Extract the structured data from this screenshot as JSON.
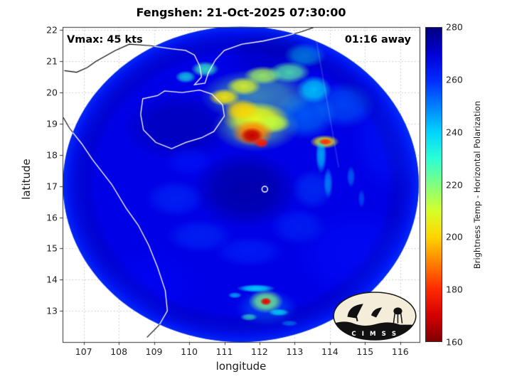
{
  "title": "Fengshen: 21-Oct-2025 07:30:00",
  "annotations": {
    "vmax": "Vmax: 45 kts",
    "time_away": "01:16 away"
  },
  "axes": {
    "xlabel": "longitude",
    "ylabel": "latitude",
    "xlim": [
      106.4,
      116.55
    ],
    "ylim": [
      12.0,
      22.1
    ],
    "xticks": [
      107,
      108,
      109,
      110,
      111,
      112,
      113,
      114,
      115,
      116
    ],
    "yticks": [
      13,
      14,
      15,
      16,
      17,
      18,
      19,
      20,
      21,
      22
    ],
    "grid": "dotted"
  },
  "colorbar": {
    "label": "Brightness Temp - Horizontal Polarization",
    "min": 160,
    "max": 280,
    "ticks": [
      160,
      180,
      200,
      220,
      240,
      260,
      280
    ],
    "colormap": "jet-reversed"
  },
  "logo": {
    "text": "C I M S S"
  },
  "chart_data": {
    "type": "heatmap",
    "title": "Fengshen: 21-Oct-2025 07:30:00",
    "storm": {
      "name": "Fengshen",
      "vmax_kts": 45,
      "time_to_obs": "01:16 away",
      "obs_time": "21-Oct-2025 07:30:00"
    },
    "units": "Brightness Temp (K), Horizontal Polarization",
    "swath": {
      "center_lon": 111.47,
      "center_lat": 17.06,
      "radius_deg": 5.06,
      "base_temp": 268
    },
    "center_marker": {
      "lon": 112.15,
      "lat": 16.9
    },
    "seam": [
      [
        113.55,
        22.1
      ],
      [
        114.25,
        17.6
      ]
    ],
    "features": [
      {
        "t": 277,
        "lon": 111.6,
        "lat": 16.9,
        "rx": 1.5,
        "ry": 1.25,
        "a": 0.75
      },
      {
        "t": 276,
        "lon": 109.7,
        "lat": 18.9,
        "rx": 1.6,
        "ry": 1.1,
        "a": 0.6
      },
      {
        "t": 274,
        "lon": 112.4,
        "lat": 21.2,
        "rx": 1.4,
        "ry": 0.95,
        "a": 0.5
      },
      {
        "t": 263,
        "lon": 114.8,
        "lat": 14.8,
        "rx": 1.8,
        "ry": 1.5,
        "a": 0.5
      },
      {
        "t": 262,
        "lon": 115.7,
        "lat": 18.5,
        "rx": 1.1,
        "ry": 1.7,
        "a": 0.5
      },
      {
        "t": 264,
        "lon": 108.9,
        "lat": 13.9,
        "rx": 1.5,
        "ry": 1.1,
        "a": 0.4
      },
      {
        "t": 258,
        "lon": 109.6,
        "lat": 16.6,
        "rx": 0.85,
        "ry": 0.6,
        "a": 0.5
      },
      {
        "t": 258,
        "lon": 110.3,
        "lat": 15.4,
        "rx": 0.95,
        "ry": 0.55,
        "a": 0.5
      },
      {
        "t": 259,
        "lon": 111.7,
        "lat": 14.9,
        "rx": 1.0,
        "ry": 0.5,
        "a": 0.5
      },
      {
        "t": 258,
        "lon": 113.1,
        "lat": 15.7,
        "rx": 0.8,
        "ry": 0.6,
        "a": 0.45
      },
      {
        "t": 255,
        "lon": 113.5,
        "lat": 16.9,
        "rx": 0.6,
        "ry": 0.65,
        "a": 0.45
      },
      {
        "t": 262,
        "lon": 110.0,
        "lat": 17.8,
        "rx": 0.7,
        "ry": 0.5,
        "a": 0.5
      },
      {
        "t": 250,
        "lon": 114.4,
        "lat": 19.6,
        "rx": 0.9,
        "ry": 0.75,
        "a": 0.5
      },
      {
        "t": 247,
        "lon": 113.3,
        "lat": 19.3,
        "rx": 0.9,
        "ry": 0.8,
        "a": 0.55
      },
      {
        "t": 222,
        "lon": 111.9,
        "lat": 19.9,
        "rx": 1.6,
        "ry": 0.85,
        "a": 0.5
      },
      {
        "t": 220,
        "lon": 111.9,
        "lat": 18.9,
        "rx": 1.25,
        "ry": 0.8,
        "a": 0.5
      },
      {
        "t": 203,
        "lon": 111.0,
        "lat": 19.85,
        "rx": 0.45,
        "ry": 0.28,
        "a": 0.9
      },
      {
        "t": 208,
        "lon": 111.55,
        "lat": 20.2,
        "rx": 0.5,
        "ry": 0.3,
        "a": 0.85
      },
      {
        "t": 215,
        "lon": 112.1,
        "lat": 20.55,
        "rx": 0.55,
        "ry": 0.3,
        "a": 0.85
      },
      {
        "t": 224,
        "lon": 112.85,
        "lat": 20.65,
        "rx": 0.6,
        "ry": 0.35,
        "a": 0.8
      },
      {
        "t": 236,
        "lon": 113.55,
        "lat": 20.1,
        "rx": 0.5,
        "ry": 0.45,
        "a": 0.75
      },
      {
        "t": 228,
        "lon": 110.45,
        "lat": 20.75,
        "rx": 0.4,
        "ry": 0.25,
        "a": 0.8
      },
      {
        "t": 232,
        "lon": 109.9,
        "lat": 20.5,
        "rx": 0.3,
        "ry": 0.2,
        "a": 0.7
      },
      {
        "t": 240,
        "lon": 113.3,
        "lat": 21.2,
        "rx": 0.6,
        "ry": 0.4,
        "a": 0.6
      },
      {
        "t": 207,
        "lon": 111.9,
        "lat": 19.15,
        "rx": 0.95,
        "ry": 0.55,
        "a": 0.95
      },
      {
        "t": 200,
        "lon": 111.5,
        "lat": 19.45,
        "rx": 0.5,
        "ry": 0.35,
        "a": 0.9
      },
      {
        "t": 212,
        "lon": 112.4,
        "lat": 19.0,
        "rx": 0.5,
        "ry": 0.3,
        "a": 0.85
      },
      {
        "t": 190,
        "lon": 111.8,
        "lat": 18.7,
        "rx": 0.6,
        "ry": 0.42,
        "a": 0.95
      },
      {
        "t": 205,
        "lon": 113.85,
        "lat": 18.42,
        "rx": 0.42,
        "ry": 0.22,
        "a": 0.85
      },
      {
        "t": 238,
        "lon": 113.75,
        "lat": 18.0,
        "rx": 0.16,
        "ry": 0.6,
        "a": 0.7
      },
      {
        "t": 242,
        "lon": 113.95,
        "lat": 17.1,
        "rx": 0.13,
        "ry": 0.5,
        "a": 0.6
      },
      {
        "t": 245,
        "lon": 114.6,
        "lat": 17.3,
        "rx": 0.12,
        "ry": 0.35,
        "a": 0.5
      },
      {
        "t": 248,
        "lon": 114.9,
        "lat": 16.6,
        "rx": 0.1,
        "ry": 0.3,
        "a": 0.45
      },
      {
        "t": 252,
        "lon": 112.2,
        "lat": 13.1,
        "rx": 0.9,
        "ry": 0.6,
        "a": 0.5
      },
      {
        "t": 237,
        "lon": 111.9,
        "lat": 13.72,
        "rx": 0.55,
        "ry": 0.13,
        "a": 0.85
      },
      {
        "t": 236,
        "lon": 112.55,
        "lat": 12.95,
        "rx": 0.3,
        "ry": 0.12,
        "a": 0.8
      },
      {
        "t": 228,
        "lon": 111.7,
        "lat": 12.8,
        "rx": 0.25,
        "ry": 0.12,
        "a": 0.7
      },
      {
        "t": 240,
        "lon": 111.3,
        "lat": 13.5,
        "rx": 0.2,
        "ry": 0.1,
        "a": 0.7
      },
      {
        "t": 242,
        "lon": 112.85,
        "lat": 12.6,
        "rx": 0.25,
        "ry": 0.1,
        "a": 0.6
      },
      {
        "t": 220,
        "lon": 112.18,
        "lat": 13.3,
        "rx": 0.5,
        "ry": 0.38,
        "a": 0.85
      },
      {
        "t": 168,
        "lon": 111.78,
        "lat": 18.62,
        "rx": 0.33,
        "ry": 0.26,
        "a": 1
      },
      {
        "t": 178,
        "lon": 112.05,
        "lat": 18.38,
        "rx": 0.22,
        "ry": 0.16,
        "a": 0.95
      },
      {
        "t": 180,
        "lon": 113.87,
        "lat": 18.42,
        "rx": 0.2,
        "ry": 0.11,
        "a": 1
      },
      {
        "t": 172,
        "lon": 112.18,
        "lat": 13.3,
        "rx": 0.17,
        "ry": 0.13,
        "a": 1
      }
    ],
    "coastlines": {
      "china_coast": [
        [
          106.45,
          20.7
        ],
        [
          106.8,
          20.65
        ],
        [
          107.1,
          20.8
        ],
        [
          107.35,
          21.0
        ],
        [
          107.9,
          21.35
        ],
        [
          108.3,
          21.55
        ],
        [
          108.9,
          21.5
        ],
        [
          109.5,
          21.4
        ],
        [
          109.9,
          21.35
        ],
        [
          110.15,
          21.2
        ],
        [
          110.3,
          20.85
        ],
        [
          110.35,
          20.5
        ],
        [
          110.15,
          20.25
        ],
        [
          110.45,
          20.3
        ],
        [
          110.55,
          20.65
        ],
        [
          110.75,
          21.05
        ],
        [
          111.0,
          21.35
        ],
        [
          111.5,
          21.55
        ],
        [
          112.1,
          21.65
        ],
        [
          112.7,
          21.8
        ],
        [
          113.2,
          21.95
        ],
        [
          113.7,
          22.15
        ]
      ],
      "hainan_island": [
        [
          108.62,
          19.3
        ],
        [
          108.68,
          19.8
        ],
        [
          109.1,
          19.9
        ],
        [
          109.3,
          20.05
        ],
        [
          109.8,
          20.0
        ],
        [
          110.3,
          20.08
        ],
        [
          110.65,
          19.95
        ],
        [
          110.95,
          19.6
        ],
        [
          111.0,
          19.25
        ],
        [
          110.7,
          18.75
        ],
        [
          110.35,
          18.55
        ],
        [
          109.9,
          18.4
        ],
        [
          109.5,
          18.2
        ],
        [
          109.05,
          18.4
        ],
        [
          108.7,
          18.8
        ],
        [
          108.62,
          19.3
        ]
      ],
      "vietnam_coast": [
        [
          106.42,
          19.2
        ],
        [
          106.6,
          18.85
        ],
        [
          106.95,
          18.35
        ],
        [
          107.25,
          17.85
        ],
        [
          107.8,
          17.05
        ],
        [
          108.2,
          16.3
        ],
        [
          108.55,
          15.75
        ],
        [
          108.85,
          15.1
        ],
        [
          109.1,
          14.4
        ],
        [
          109.32,
          13.65
        ],
        [
          109.38,
          13.0
        ],
        [
          109.15,
          12.55
        ],
        [
          108.8,
          12.15
        ]
      ]
    }
  }
}
